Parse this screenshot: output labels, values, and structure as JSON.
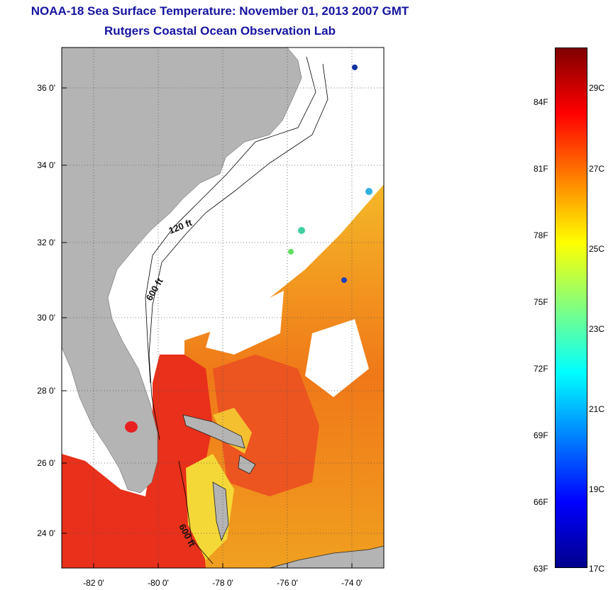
{
  "title": "NOAA-18 Sea Surface Temperature:  November 01, 2013 2007 GMT",
  "subtitle": "Rutgers Coastal Ocean Observation Lab",
  "map": {
    "lon_range": [
      -83,
      -73
    ],
    "lat_range": [
      23,
      37
    ],
    "lon_ticks": [
      "-82 0'",
      "-80 0'",
      "-78 0'",
      "-76 0'",
      "-74 0'"
    ],
    "lat_ticks": [
      "36 0'",
      "34 0'",
      "32 0'",
      "30 0'",
      "28 0'",
      "26 0'",
      "24 0'"
    ],
    "depth_labels": [
      "120 ft",
      "600 ft",
      "600 ft"
    ],
    "land_color": "#b4b4b4",
    "grid": "dotted"
  },
  "colorbar": {
    "range_f": [
      63,
      86
    ],
    "range_c": [
      17,
      30
    ],
    "fahrenheit_ticks": [
      "84F",
      "81F",
      "78F",
      "75F",
      "72F",
      "69F",
      "66F",
      "63F"
    ],
    "celsius_ticks": [
      "29C",
      "27C",
      "25C",
      "23C",
      "21C",
      "19C",
      "17C"
    ],
    "colormap": "jet"
  }
}
